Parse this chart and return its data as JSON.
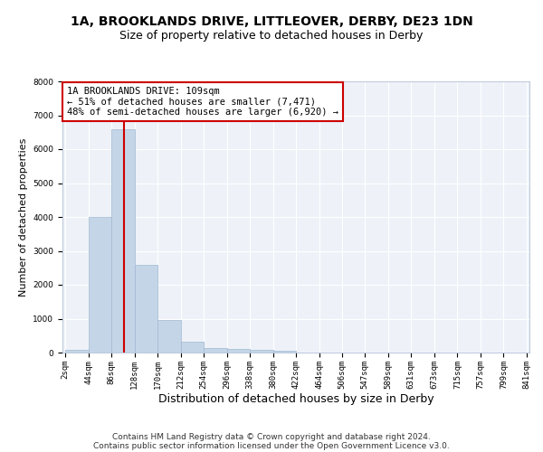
{
  "title": "1A, BROOKLANDS DRIVE, LITTLEOVER, DERBY, DE23 1DN",
  "subtitle": "Size of property relative to detached houses in Derby",
  "xlabel": "Distribution of detached houses by size in Derby",
  "ylabel": "Number of detached properties",
  "bin_edges": [
    2,
    44,
    86,
    128,
    170,
    212,
    254,
    296,
    338,
    380,
    422,
    464,
    506,
    547,
    589,
    631,
    673,
    715,
    757,
    799,
    841
  ],
  "bar_heights": [
    75,
    4000,
    6600,
    2600,
    950,
    325,
    130,
    100,
    75,
    50,
    0,
    0,
    0,
    0,
    0,
    0,
    0,
    0,
    0,
    0
  ],
  "bar_color": "#c5d5e8",
  "bar_edgecolor": "#a0b8d0",
  "bar_linewidth": 0.5,
  "vline_x": 109,
  "vline_color": "#cc0000",
  "vline_linewidth": 1.5,
  "annotation_text": "1A BROOKLANDS DRIVE: 109sqm\n← 51% of detached houses are smaller (7,471)\n48% of semi-detached houses are larger (6,920) →",
  "annotation_box_color": "#cc0000",
  "ylim": [
    0,
    8000
  ],
  "yticks": [
    0,
    1000,
    2000,
    3000,
    4000,
    5000,
    6000,
    7000,
    8000
  ],
  "background_color": "#eef2f8",
  "grid_color": "#ffffff",
  "footer_line1": "Contains HM Land Registry data © Crown copyright and database right 2024.",
  "footer_line2": "Contains public sector information licensed under the Open Government Licence v3.0.",
  "title_fontsize": 10,
  "subtitle_fontsize": 9,
  "xlabel_fontsize": 9,
  "ylabel_fontsize": 8,
  "tick_fontsize": 6.5,
  "annotation_fontsize": 7.5,
  "footer_fontsize": 6.5
}
